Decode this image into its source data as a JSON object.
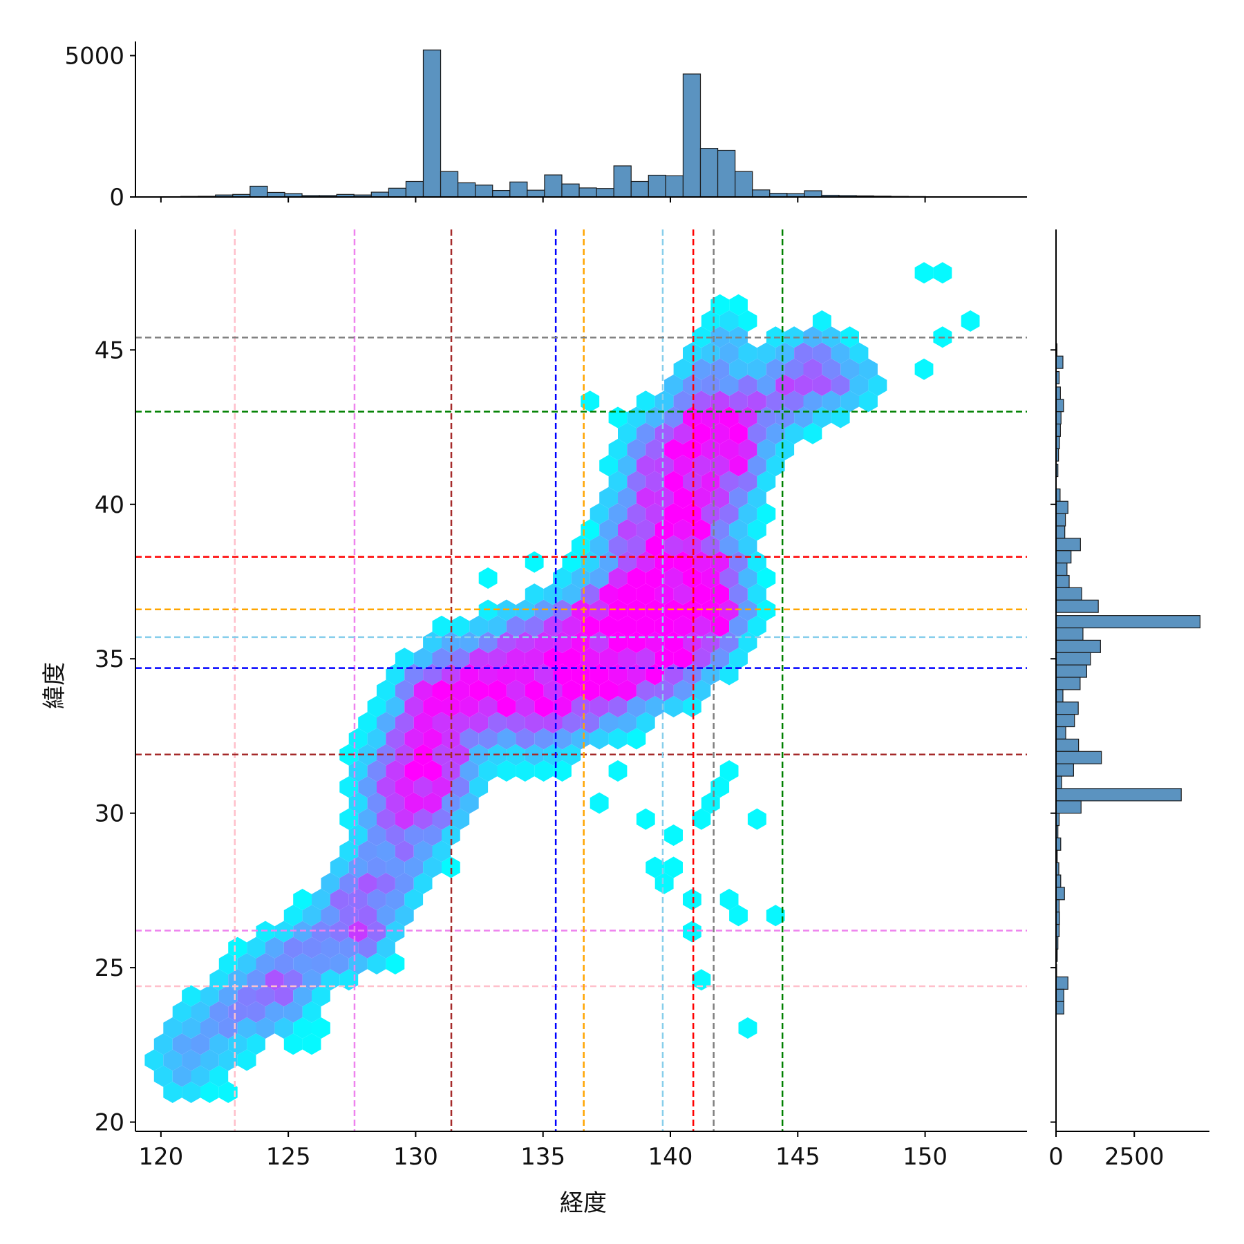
{
  "chart_data": {
    "type": "hexbin",
    "xlabel": "経度",
    "ylabel": "緯度",
    "xlim": [
      119,
      154
    ],
    "ylim": [
      19.7,
      48.9
    ],
    "x_ticks": [
      120,
      125,
      130,
      135,
      140,
      145,
      150
    ],
    "y_ticks": [
      20,
      25,
      30,
      35,
      40,
      45
    ],
    "colormap": [
      "#00ffff",
      "#ff00ff"
    ],
    "reference_lines": [
      {
        "color": "#ffc0cb",
        "x": 122.9,
        "y": 24.4
      },
      {
        "color": "#ee82ee",
        "x": 127.6,
        "y": 26.2
      },
      {
        "color": "#a52a2a",
        "x": 131.4,
        "y": 31.9
      },
      {
        "color": "#0000ff",
        "x": 135.5,
        "y": 34.7
      },
      {
        "color": "#ffa500",
        "x": 136.6,
        "y": 36.6
      },
      {
        "color": "#87ceeb",
        "x": 139.7,
        "y": 35.7
      },
      {
        "color": "#ff0000",
        "x": 140.9,
        "y": 38.3
      },
      {
        "color": "#808080",
        "x": 141.7,
        "y": 45.4
      },
      {
        "color": "#008000",
        "x": 144.4,
        "y": 43.0
      }
    ],
    "top_histogram": {
      "bar_color": "#5b93c0",
      "y_ticks": [
        0,
        5000
      ],
      "ylim": [
        0,
        5500
      ],
      "bin_start": 120.1,
      "bin_width": 0.68,
      "counts": [
        10,
        20,
        25,
        70,
        90,
        380,
        160,
        120,
        50,
        50,
        90,
        70,
        170,
        310,
        550,
        5200,
        900,
        500,
        420,
        230,
        530,
        240,
        780,
        460,
        320,
        300,
        1100,
        550,
        770,
        750,
        4350,
        1720,
        1650,
        900,
        250,
        130,
        120,
        220,
        60,
        50,
        40,
        30,
        20,
        15,
        10,
        10,
        10,
        10,
        5
      ]
    },
    "right_histogram": {
      "bar_color": "#5b93c0",
      "x_ticks": [
        0,
        2500
      ],
      "xlim": [
        0,
        4900
      ],
      "bins": [
        [
          45.0,
          30
        ],
        [
          44.6,
          220
        ],
        [
          44.1,
          100
        ],
        [
          43.6,
          140
        ],
        [
          43.2,
          240
        ],
        [
          42.8,
          160
        ],
        [
          42.4,
          140
        ],
        [
          42.0,
          110
        ],
        [
          41.6,
          80
        ],
        [
          41.1,
          60
        ],
        [
          40.3,
          130
        ],
        [
          39.9,
          380
        ],
        [
          39.5,
          300
        ],
        [
          39.1,
          280
        ],
        [
          38.7,
          780
        ],
        [
          38.3,
          480
        ],
        [
          37.9,
          350
        ],
        [
          37.5,
          420
        ],
        [
          37.1,
          820
        ],
        [
          36.7,
          1350
        ],
        [
          36.2,
          4600
        ],
        [
          35.8,
          860
        ],
        [
          35.4,
          1420
        ],
        [
          35.0,
          1100
        ],
        [
          34.6,
          980
        ],
        [
          34.2,
          770
        ],
        [
          33.8,
          220
        ],
        [
          33.4,
          710
        ],
        [
          33.0,
          590
        ],
        [
          32.6,
          310
        ],
        [
          32.2,
          720
        ],
        [
          31.8,
          1450
        ],
        [
          31.4,
          560
        ],
        [
          31.0,
          180
        ],
        [
          30.6,
          4000
        ],
        [
          30.2,
          800
        ],
        [
          29.8,
          100
        ],
        [
          29.4,
          60
        ],
        [
          29.0,
          150
        ],
        [
          28.6,
          40
        ],
        [
          28.2,
          90
        ],
        [
          27.8,
          150
        ],
        [
          27.4,
          270
        ],
        [
          27.0,
          100
        ],
        [
          26.6,
          110
        ],
        [
          26.2,
          100
        ],
        [
          25.8,
          60
        ],
        [
          25.4,
          40
        ],
        [
          24.9,
          20
        ],
        [
          24.5,
          380
        ],
        [
          24.1,
          250
        ],
        [
          23.7,
          250
        ]
      ]
    }
  }
}
